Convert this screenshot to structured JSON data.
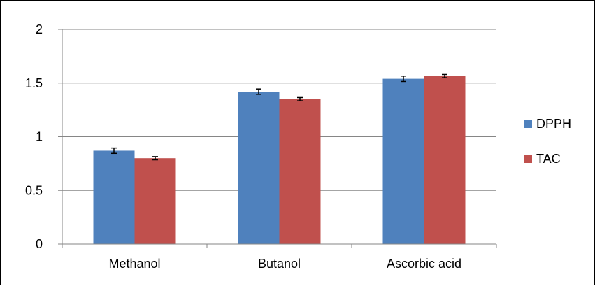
{
  "chart_data": {
    "type": "bar",
    "categories": [
      "Methanol",
      "Butanol",
      "Ascorbic acid"
    ],
    "series": [
      {
        "name": "DPPH",
        "color": "#4F81BD",
        "values": [
          0.87,
          1.42,
          1.54
        ],
        "errors": [
          0.025,
          0.025,
          0.025
        ]
      },
      {
        "name": "TAC",
        "color": "#C0504D",
        "values": [
          0.8,
          1.35,
          1.565
        ],
        "errors": [
          0.015,
          0.015,
          0.015
        ]
      }
    ],
    "ylim": [
      0,
      2
    ],
    "yticks": [
      "0",
      "0.5",
      "1",
      "1.5",
      "2"
    ],
    "ytick_values": [
      0,
      0.5,
      1,
      1.5,
      2
    ],
    "grid": true,
    "legend_position": "right",
    "xlabel": "",
    "ylabel": "",
    "title": ""
  }
}
